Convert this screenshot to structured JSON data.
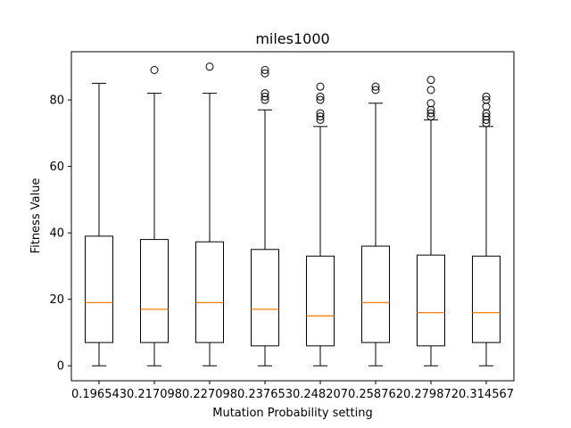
{
  "chart_data": {
    "type": "box",
    "title": "miles1000",
    "xlabel": "Mutation Probability setting",
    "ylabel": "Fitness Value",
    "ylim": [
      -4.5,
      94.5
    ],
    "yticks": [
      0,
      20,
      40,
      60,
      80
    ],
    "grid": false,
    "colors": {
      "box": "#000000",
      "median": "#ff7f0e",
      "background": "#ffffff"
    },
    "categories": [
      "0.196543",
      "0.217098",
      "0.227098",
      "0.237653",
      "0.248207",
      "0.258762",
      "0.279872",
      "0.314567"
    ],
    "boxes": [
      {
        "whisker_low": 0,
        "q1": 7,
        "median": 19,
        "q3": 39,
        "whisker_high": 85,
        "fliers": []
      },
      {
        "whisker_low": 0,
        "q1": 7,
        "median": 17,
        "q3": 38,
        "whisker_high": 82,
        "fliers": [
          89
        ]
      },
      {
        "whisker_low": 0,
        "q1": 7,
        "median": 19,
        "q3": 37.3,
        "whisker_high": 82,
        "fliers": [
          90
        ]
      },
      {
        "whisker_low": 0,
        "q1": 6,
        "median": 17,
        "q3": 35,
        "whisker_high": 77,
        "fliers": [
          80,
          81,
          82,
          88,
          89
        ]
      },
      {
        "whisker_low": 0,
        "q1": 6,
        "median": 15,
        "q3": 33,
        "whisker_high": 72,
        "fliers": [
          74,
          75,
          76,
          80,
          81,
          84
        ]
      },
      {
        "whisker_low": 0,
        "q1": 7,
        "median": 19,
        "q3": 36,
        "whisker_high": 79,
        "fliers": [
          83,
          84
        ]
      },
      {
        "whisker_low": 0,
        "q1": 6,
        "median": 16,
        "q3": 33.3,
        "whisker_high": 74,
        "fliers": [
          75,
          76,
          77,
          79,
          83,
          86
        ]
      },
      {
        "whisker_low": 0,
        "q1": 7,
        "median": 16,
        "q3": 33,
        "whisker_high": 72,
        "fliers": [
          73,
          74,
          75,
          76,
          78,
          80,
          81
        ]
      }
    ]
  }
}
